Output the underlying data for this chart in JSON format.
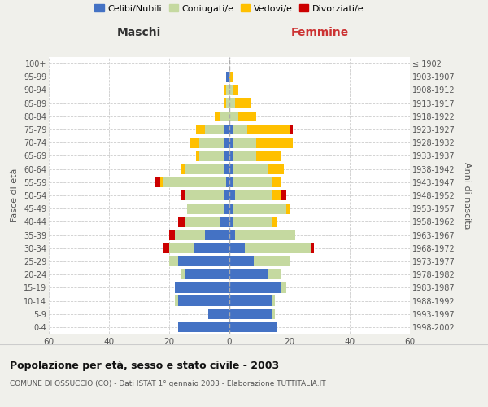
{
  "age_groups": [
    "0-4",
    "5-9",
    "10-14",
    "15-19",
    "20-24",
    "25-29",
    "30-34",
    "35-39",
    "40-44",
    "45-49",
    "50-54",
    "55-59",
    "60-64",
    "65-69",
    "70-74",
    "75-79",
    "80-84",
    "85-89",
    "90-94",
    "95-99",
    "100+"
  ],
  "birth_years": [
    "1998-2002",
    "1993-1997",
    "1988-1992",
    "1983-1987",
    "1978-1982",
    "1973-1977",
    "1968-1972",
    "1963-1967",
    "1958-1962",
    "1953-1957",
    "1948-1952",
    "1943-1947",
    "1938-1942",
    "1933-1937",
    "1928-1932",
    "1923-1927",
    "1918-1922",
    "1913-1917",
    "1908-1912",
    "1903-1907",
    "≤ 1902"
  ],
  "males": {
    "celibi": [
      17,
      7,
      17,
      18,
      15,
      17,
      12,
      8,
      3,
      2,
      2,
      1,
      2,
      2,
      2,
      2,
      0,
      0,
      0,
      1,
      0
    ],
    "coniugati": [
      0,
      0,
      1,
      0,
      1,
      3,
      8,
      10,
      12,
      12,
      13,
      21,
      13,
      8,
      8,
      6,
      3,
      1,
      1,
      0,
      0
    ],
    "vedovi": [
      0,
      0,
      0,
      0,
      0,
      0,
      0,
      0,
      0,
      0,
      0,
      1,
      1,
      1,
      3,
      3,
      2,
      1,
      1,
      0,
      0
    ],
    "divorziati": [
      0,
      0,
      0,
      0,
      0,
      0,
      2,
      2,
      2,
      0,
      1,
      2,
      0,
      0,
      0,
      0,
      0,
      0,
      0,
      0,
      0
    ]
  },
  "females": {
    "nubili": [
      16,
      14,
      14,
      17,
      13,
      8,
      5,
      2,
      1,
      1,
      2,
      1,
      1,
      1,
      1,
      1,
      0,
      0,
      0,
      0,
      0
    ],
    "coniugate": [
      0,
      1,
      1,
      2,
      4,
      12,
      22,
      20,
      13,
      18,
      12,
      13,
      12,
      8,
      8,
      5,
      3,
      2,
      1,
      0,
      0
    ],
    "vedove": [
      0,
      0,
      0,
      0,
      0,
      0,
      0,
      0,
      2,
      1,
      3,
      3,
      5,
      8,
      12,
      14,
      6,
      5,
      2,
      1,
      0
    ],
    "divorziate": [
      0,
      0,
      0,
      0,
      0,
      0,
      1,
      0,
      0,
      0,
      2,
      0,
      0,
      0,
      0,
      1,
      0,
      0,
      0,
      0,
      0
    ]
  },
  "colors": {
    "celibi": "#4472c4",
    "coniugati": "#c5d9a0",
    "vedovi": "#ffc000",
    "divorziati": "#cc0000"
  },
  "xlim": 60,
  "title": "Popolazione per età, sesso e stato civile - 2003",
  "subtitle": "COMUNE DI OSSUCCIO (CO) - Dati ISTAT 1° gennaio 2003 - Elaborazione TUTTITALIA.IT",
  "xlabel_left": "Maschi",
  "xlabel_right": "Femmine",
  "ylabel_left": "Fasce di età",
  "ylabel_right": "Anni di nascita",
  "legend_labels": [
    "Celibi/Nubili",
    "Coniugati/e",
    "Vedovi/e",
    "Divorziati/e"
  ],
  "bg_color": "#f0f0eb",
  "plot_bg_color": "#ffffff"
}
